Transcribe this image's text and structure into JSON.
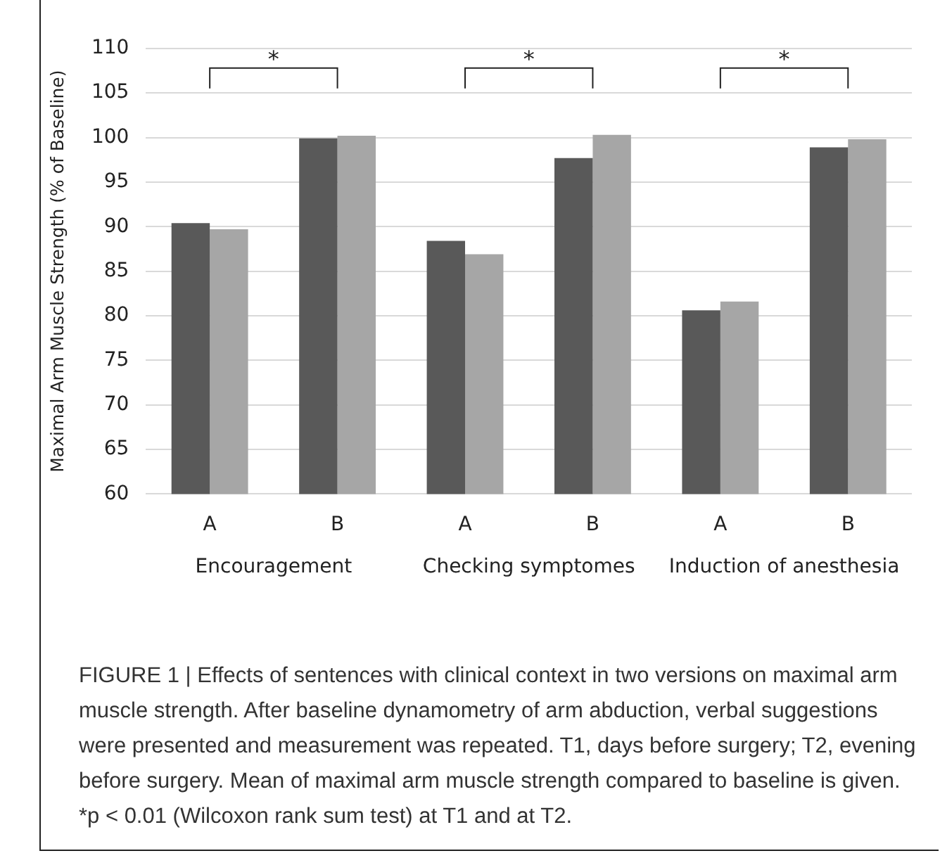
{
  "chart_data": {
    "type": "bar",
    "ylabel": "Maximal Arm Muscle Strength (% of Baseline)",
    "categories": [
      "A",
      "B",
      "A",
      "B",
      "A",
      "B"
    ],
    "series": [
      {
        "color": "#595959",
        "values": [
          90.4,
          99.9,
          88.4,
          97.7,
          80.6,
          98.9
        ]
      },
      {
        "color": "#a6a6a6",
        "values": [
          89.7,
          100.2,
          86.9,
          100.3,
          81.6,
          99.8
        ]
      }
    ],
    "ylim": [
      60,
      110
    ],
    "yticks": [
      60,
      65,
      70,
      75,
      80,
      85,
      90,
      95,
      100,
      105,
      110
    ],
    "grid": "y",
    "legend": false,
    "annotations": [
      "*",
      "*",
      "*",
      "Encouragement",
      "Checking symptomes",
      "Induction of anesthesia",
      "FIGURE 1 | Effects of sentences with clinical context in two versions on maximal arm muscle strength. After baseline dynamometry of arm abduction, verbal suggestions were presented and measurement was repeated. T1, days before surgery; T2, evening before surgery. Mean of maximal arm muscle strength compared to baseline is given. *p < 0.01 (Wilcoxon rank sum test) at T1 and at T2."
    ]
  }
}
